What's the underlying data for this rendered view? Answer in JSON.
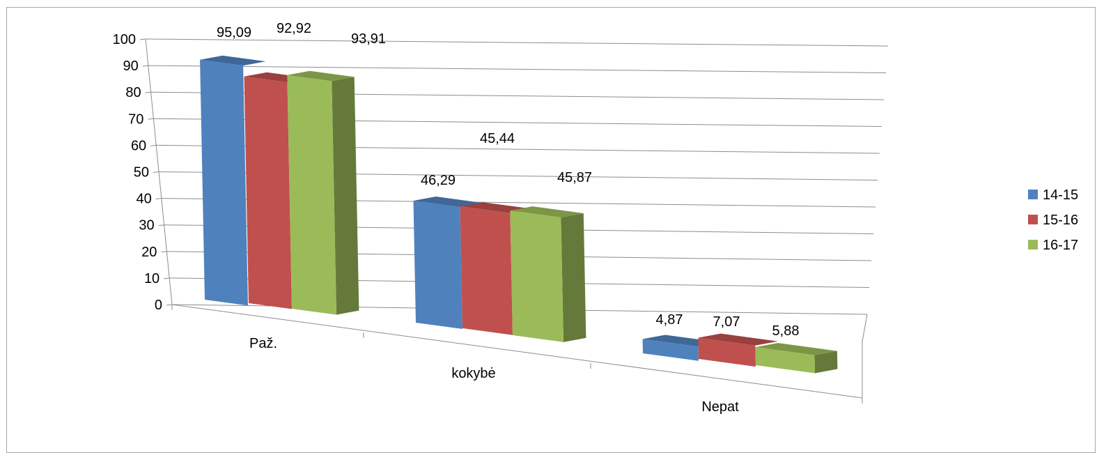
{
  "chart_data": {
    "type": "bar",
    "title": "",
    "xlabel": "",
    "ylabel": "",
    "categories": [
      "Paž.",
      "kokybė",
      "Nepat"
    ],
    "series": [
      {
        "name": "14-15",
        "values": [
          95.09,
          46.29,
          4.87
        ],
        "labels": [
          "95,09",
          "46,29",
          "4,87"
        ],
        "color": "#4f81bd"
      },
      {
        "name": "15-16",
        "values": [
          92.92,
          45.44,
          7.07
        ],
        "labels": [
          "92,92",
          "45,44",
          "7,07"
        ],
        "color": "#c0504d"
      },
      {
        "name": "16-17",
        "values": [
          93.91,
          45.87,
          5.88
        ],
        "labels": [
          "93,91",
          "45,87",
          "5,88"
        ],
        "color": "#9bbb59"
      }
    ],
    "ylim": [
      0,
      100
    ],
    "yticks": [
      "0",
      "10",
      "20",
      "30",
      "40",
      "50",
      "60",
      "70",
      "80",
      "90",
      "100"
    ],
    "grid": true,
    "legend": "right",
    "projection": "3d-perspective"
  }
}
